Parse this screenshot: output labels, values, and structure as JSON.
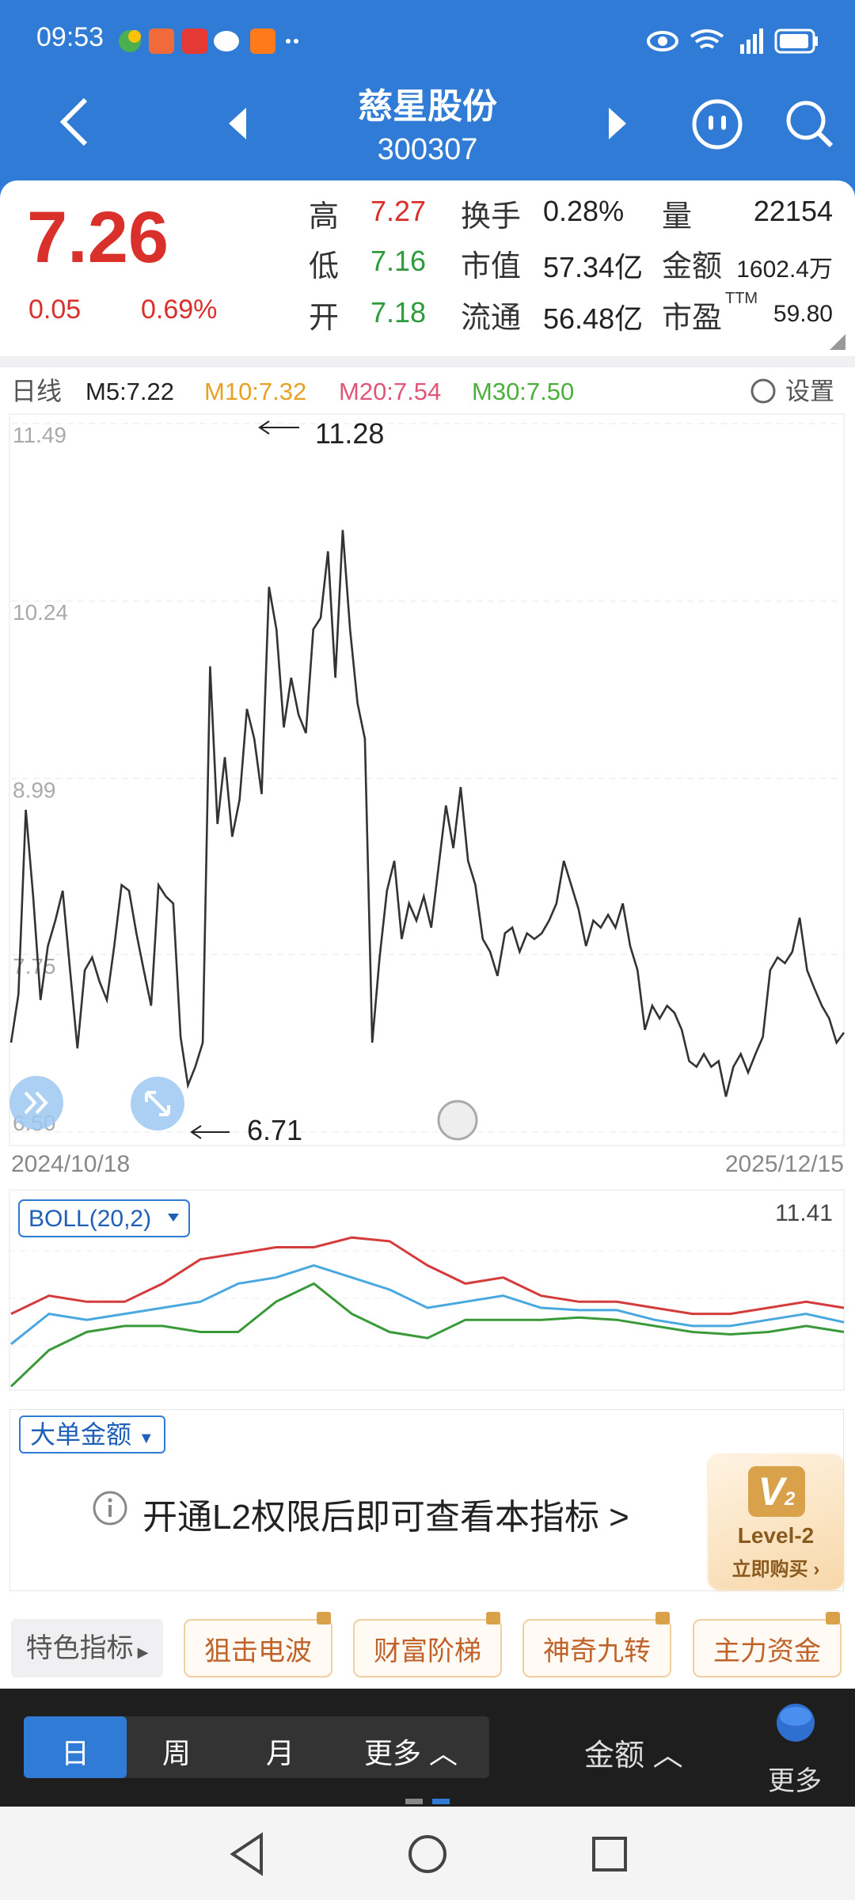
{
  "status_bar": {
    "time": "09:53"
  },
  "header": {
    "title": "慈星股份",
    "code": "300307"
  },
  "quote": {
    "price": "7.26",
    "change": "0.05",
    "change_pct": "0.69%",
    "stats": [
      [
        {
          "label": "高",
          "value": "7.27",
          "color": "#d9302b"
        },
        {
          "label": "换手",
          "value": "0.28%"
        },
        {
          "label": "量",
          "value": "22154"
        }
      ],
      [
        {
          "label": "低",
          "value": "7.16",
          "color": "#2e9b3c"
        },
        {
          "label": "市值",
          "value": "57.34亿"
        },
        {
          "label": "金额",
          "value": "1602.4万"
        }
      ],
      [
        {
          "label": "开",
          "value": "7.18",
          "color": "#2e9b3c"
        },
        {
          "label": "流通",
          "value": "56.48亿"
        },
        {
          "label": "市盈",
          "sup": "TTM",
          "value": "59.80"
        }
      ]
    ]
  },
  "chart_data": [
    {
      "type": "line",
      "period": "日线",
      "ma": [
        {
          "label": "M5:7.22",
          "color": "#222222"
        },
        {
          "label": "M10:7.32",
          "color": "#e6a124"
        },
        {
          "label": "M20:7.54",
          "color": "#e0557a"
        },
        {
          "label": "M30:7.50",
          "color": "#4caf3c"
        }
      ],
      "settings_label": "设置",
      "x_labels": [
        "2024/10/18",
        "2025/12/15"
      ],
      "annotations": [
        "11.28",
        "6.71"
      ],
      "color": "#333333",
      "grid": true,
      "ylim": [
        6.5,
        11.49
      ],
      "yticks": [
        {
          "value": 6.5,
          "label": "6.50"
        },
        7.75,
        8.99,
        10.24,
        11.49
      ],
      "values": [
        7.13,
        7.47,
        8.77,
        8.16,
        7.43,
        7.81,
        7.99,
        8.2,
        7.64,
        7.09,
        7.64,
        7.73,
        7.56,
        7.43,
        7.81,
        8.24,
        8.2,
        7.9,
        7.64,
        7.39,
        8.24,
        8.16,
        8.11,
        7.17,
        6.83,
        6.96,
        7.13,
        9.78,
        8.67,
        9.14,
        8.58,
        8.84,
        9.48,
        9.27,
        8.88,
        10.34,
        10.04,
        9.35,
        9.7,
        9.44,
        9.31,
        10.04,
        10.12,
        10.59,
        9.7,
        10.74,
        10.04,
        9.52,
        9.27,
        7.13,
        7.73,
        8.2,
        8.41,
        7.86,
        8.11,
        7.99,
        8.16,
        7.94,
        8.37,
        8.8,
        8.5,
        8.93,
        8.41,
        8.24,
        7.86,
        7.77,
        7.6,
        7.9,
        7.94,
        7.77,
        7.9,
        7.86,
        7.9,
        7.99,
        8.11,
        8.41,
        8.24,
        8.07,
        7.81,
        7.99,
        7.94,
        8.03,
        7.94,
        8.11,
        7.81,
        7.64,
        7.22,
        7.39,
        7.3,
        7.39,
        7.34,
        7.22,
        7.0,
        6.96,
        7.05,
        6.96,
        7.0,
        6.75,
        6.96,
        7.05,
        6.92,
        7.05,
        7.17,
        7.64,
        7.73,
        7.69,
        7.77,
        8.01,
        7.64,
        7.51,
        7.39,
        7.3,
        7.13,
        7.2
      ]
    },
    {
      "type": "line",
      "title": "BOLL(20,2)",
      "ylim": [
        5.9,
        11.41
      ],
      "series": [
        {
          "color": "#d43c3c",
          "values": [
            8.17,
            8.71,
            8.53,
            8.53,
            9.07,
            9.79,
            9.97,
            10.15,
            10.15,
            10.44,
            10.33,
            9.61,
            9.07,
            9.25,
            8.71,
            8.53,
            8.53,
            8.35,
            8.17,
            8.17,
            8.35,
            8.53,
            8.35
          ]
        },
        {
          "color": "#4aa8e0",
          "values": [
            7.27,
            8.17,
            7.99,
            8.17,
            8.35,
            8.53,
            9.07,
            9.25,
            9.61,
            9.25,
            8.89,
            8.35,
            8.53,
            8.71,
            8.35,
            8.28,
            8.28,
            7.99,
            7.81,
            7.81,
            7.99,
            8.17,
            7.92
          ]
        },
        {
          "color": "#3a9a3a",
          "values": [
            6.01,
            7.09,
            7.63,
            7.81,
            7.81,
            7.63,
            7.63,
            8.53,
            9.07,
            8.17,
            7.63,
            7.45,
            7.99,
            7.99,
            7.99,
            8.06,
            7.99,
            7.81,
            7.63,
            7.56,
            7.63,
            7.81,
            7.63
          ]
        }
      ]
    }
  ],
  "indicator": {
    "label": "大单金额",
    "message": "开通L2权限后即可查看本指标 >",
    "badge": {
      "logo": "V",
      "logo_sub": "2",
      "title": "Level-2",
      "action": "立即购买"
    }
  },
  "features": {
    "label": "特色指标",
    "buttons": [
      "狙击电波",
      "财富阶梯",
      "神奇九转",
      "主力资金"
    ]
  },
  "bottom_bar": {
    "periods": [
      "日",
      "周",
      "月",
      "更多"
    ],
    "amount": "金额",
    "more": "更多"
  }
}
